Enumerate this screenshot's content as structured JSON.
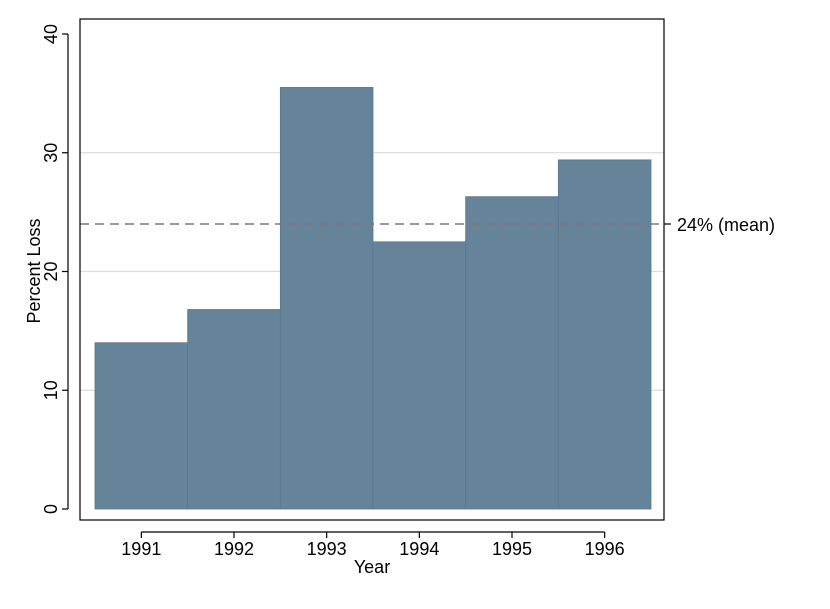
{
  "chart_data": {
    "type": "bar",
    "title": "",
    "xlabel": "Year",
    "ylabel": "Percent Loss",
    "categories": [
      "1991",
      "1992",
      "1993",
      "1994",
      "1995",
      "1996"
    ],
    "values": [
      14.0,
      16.8,
      35.5,
      22.5,
      26.3,
      29.4
    ],
    "ylim": [
      0,
      40
    ],
    "yticks": [
      "0",
      "10",
      "20",
      "30",
      "40"
    ],
    "grid": true,
    "reference_line": {
      "value": 24,
      "label": "24% (mean)",
      "style": "dashed"
    },
    "colors": {
      "bar": "#658399",
      "grid": "#dcdcdc",
      "reference_line": "#7a7a7a"
    }
  }
}
